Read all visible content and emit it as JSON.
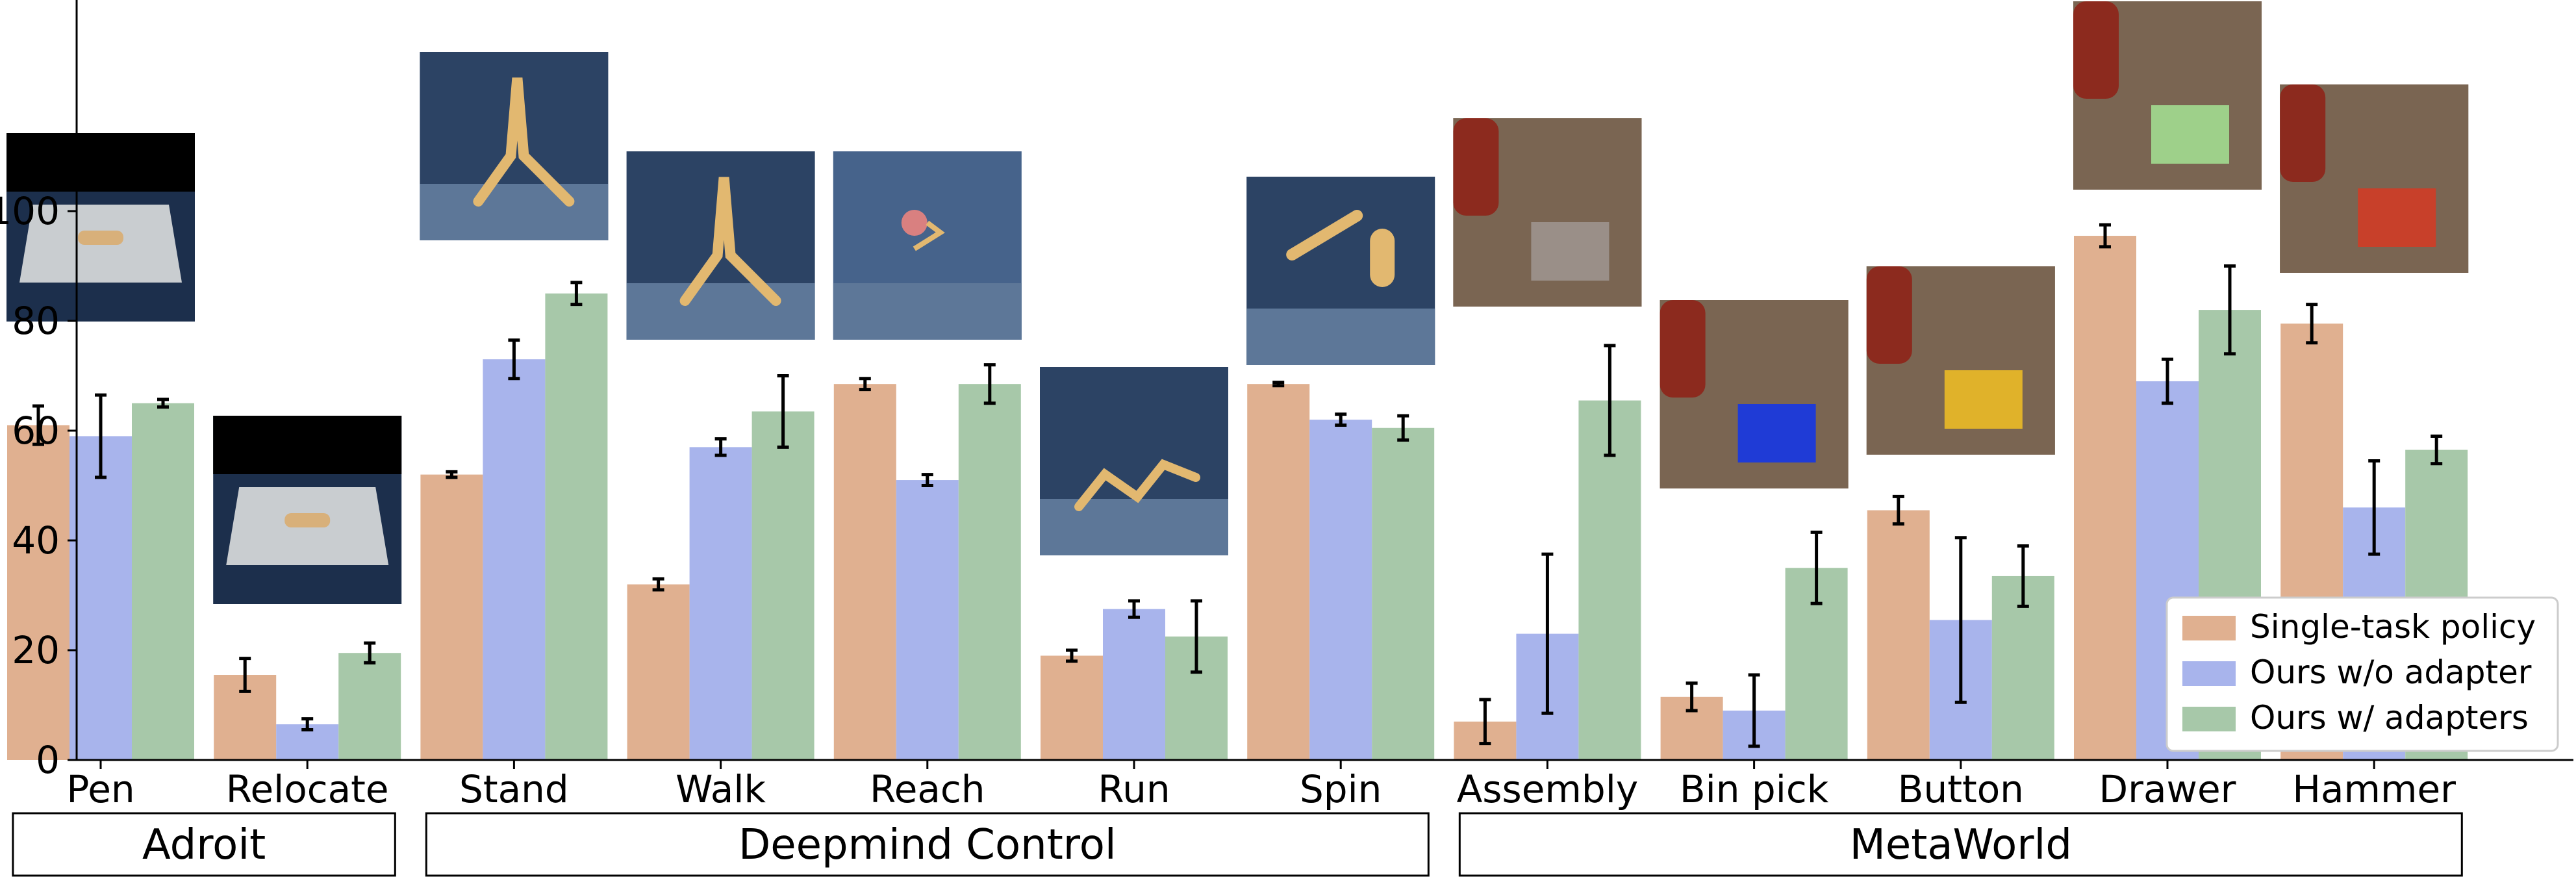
{
  "colors": {
    "single": "#e0b090",
    "without": "#a8b4ec",
    "with": "#a7c8a9",
    "error": "#000000"
  },
  "images": [
    {
      "icon": "adroit-pen-thumbnail-icon",
      "bg": "#1c2f4c"
    },
    {
      "icon": "adroit-relocate-thumbnail-icon",
      "bg": "#1c2f4c"
    },
    {
      "icon": "walker-stand-thumbnail-icon",
      "bg": "#2c4364"
    },
    {
      "icon": "walker-walk-thumbnail-icon",
      "bg": "#2c4364"
    },
    {
      "icon": "reacher-reach-thumbnail-icon",
      "bg": "#46638b"
    },
    {
      "icon": "walker-run-thumbnail-icon",
      "bg": "#2c4364"
    },
    {
      "icon": "fingerspin-thumbnail-icon",
      "bg": "#2c4364"
    },
    {
      "icon": "sawyer-assembly-thumbnail-icon",
      "bg": "#6a5a4a"
    },
    {
      "icon": "sawyer-bin-pick-thumbnail-icon",
      "bg": "#6a5a4a"
    },
    {
      "icon": "sawyer-button-thumbnail-icon",
      "bg": "#6a5a4a"
    },
    {
      "icon": "sawyer-drawer-thumbnail-icon",
      "bg": "#6a5a4a"
    },
    {
      "icon": "sawyer-hammer-thumbnail-icon",
      "bg": "#6a5a4a"
    }
  ],
  "chart_data": {
    "type": "bar",
    "title": "",
    "xlabel": "",
    "ylabel": "",
    "ylim": [
      0,
      118
    ],
    "yticks": [
      0,
      20,
      40,
      60,
      80,
      100
    ],
    "grid": false,
    "legend_position": "bottom-right",
    "categories": [
      "Pen",
      "Relocate",
      "Stand",
      "Walk",
      "Reach",
      "Run",
      "Spin",
      "Assembly",
      "Bin pick",
      "Button",
      "Drawer",
      "Hammer"
    ],
    "groups": [
      {
        "label": "Adroit",
        "start": 0,
        "end": 1
      },
      {
        "label": "Deepmind Control",
        "start": 2,
        "end": 6
      },
      {
        "label": "MetaWorld",
        "start": 7,
        "end": 11
      }
    ],
    "series": [
      {
        "name": "Single-task policy",
        "values": [
          61,
          15.5,
          52,
          32,
          68.5,
          19,
          68.5,
          7,
          11.5,
          45.5,
          95.5,
          79.5
        ],
        "errors": [
          3.5,
          3,
          0.5,
          1,
          1,
          1,
          0.3,
          4,
          2.5,
          2.5,
          2,
          3.5
        ]
      },
      {
        "name": "Ours w/o adapter",
        "values": [
          59,
          6.5,
          73,
          57,
          51,
          27.5,
          62,
          23,
          9,
          25.5,
          69,
          46
        ],
        "errors": [
          7.5,
          1,
          3.5,
          1.5,
          1,
          1.5,
          1,
          14.5,
          6.5,
          15,
          4,
          8.5
        ]
      },
      {
        "name": "Ours w/ adapters",
        "values": [
          65,
          19.5,
          85,
          63.5,
          68.5,
          22.5,
          60.5,
          65.5,
          35,
          33.5,
          82,
          56.5
        ],
        "errors": [
          0.7,
          1.8,
          2,
          6.5,
          3.5,
          6.5,
          2.2,
          10,
          6.5,
          5.5,
          8,
          2.5
        ]
      }
    ]
  }
}
